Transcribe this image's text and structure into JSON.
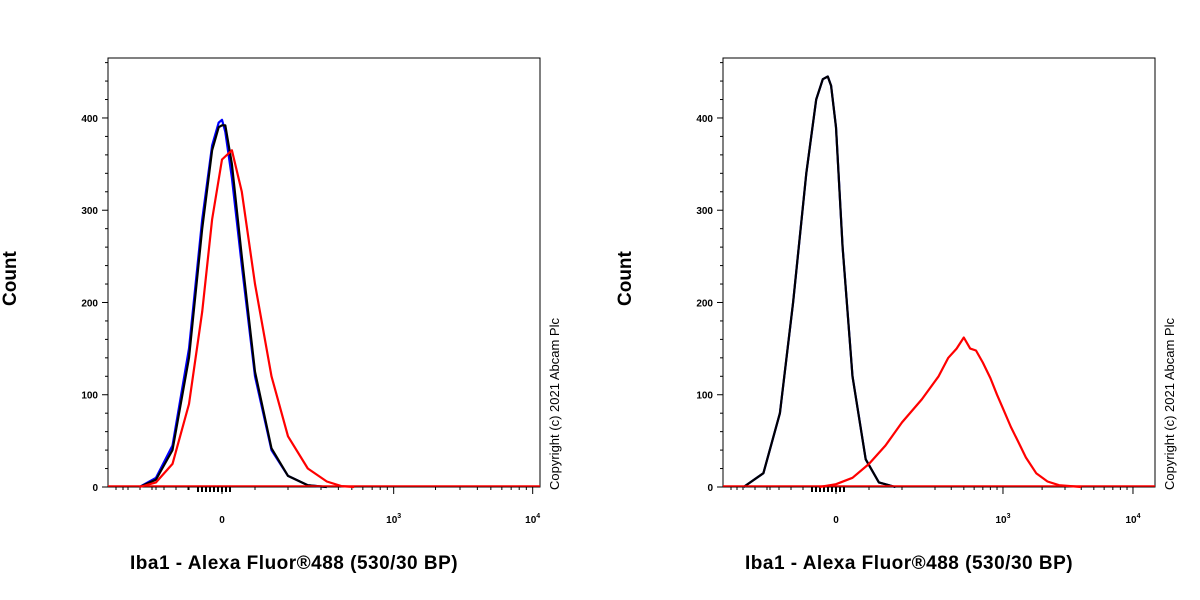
{
  "chart_data": [
    {
      "type": "line",
      "xlabel": "Iba1 - Alexa Fluor®488 (530/30 BP)",
      "ylabel": "Count",
      "copyright": "Copyright (c) 2021 Abcam Plc",
      "x_scale": "biexponential",
      "x_ticks": [
        "0",
        "10^3",
        "10^4"
      ],
      "y_ticks": [
        0,
        100,
        200,
        300,
        400
      ],
      "ylim": [
        0,
        465
      ],
      "series": [
        {
          "color": "#0000ff",
          "x": [
            -250,
            -200,
            -150,
            -100,
            -60,
            -30,
            -10,
            0,
            10,
            30,
            60,
            100,
            150,
            200,
            260,
            330
          ],
          "values": [
            0,
            10,
            45,
            150,
            290,
            370,
            395,
            398,
            385,
            335,
            240,
            120,
            40,
            12,
            2,
            0
          ]
        },
        {
          "color": "#000000",
          "x": [
            -250,
            -200,
            -150,
            -100,
            -60,
            -30,
            -10,
            0,
            10,
            30,
            60,
            100,
            150,
            200,
            260,
            330
          ],
          "values": [
            0,
            8,
            40,
            140,
            280,
            365,
            390,
            392,
            392,
            350,
            250,
            125,
            42,
            12,
            2,
            0
          ]
        },
        {
          "color": "#ff0000",
          "x": [
            -250,
            -200,
            -150,
            -100,
            -60,
            -30,
            0,
            30,
            60,
            100,
            150,
            200,
            260,
            330,
            420,
            520
          ],
          "values": [
            0,
            5,
            25,
            90,
            190,
            290,
            355,
            365,
            320,
            220,
            120,
            55,
            20,
            6,
            1,
            0
          ]
        }
      ]
    },
    {
      "type": "line",
      "xlabel": "Iba1 - Alexa Fluor®488 (530/30 BP)",
      "ylabel": "Count",
      "copyright": "Copyright (c) 2021 Abcam Plc",
      "x_scale": "biexponential",
      "x_ticks": [
        "0",
        "10^3",
        "10^4"
      ],
      "y_ticks": [
        0,
        100,
        200,
        300,
        400
      ],
      "ylim": [
        0,
        465
      ],
      "series": [
        {
          "color": "#0000ff",
          "x": [
            -280,
            -220,
            -170,
            -130,
            -90,
            -60,
            -40,
            -25,
            -15,
            0,
            20,
            50,
            90,
            130,
            180
          ],
          "values": [
            0,
            15,
            80,
            200,
            340,
            420,
            442,
            445,
            435,
            390,
            260,
            120,
            30,
            5,
            0
          ]
        },
        {
          "color": "#000000",
          "x": [
            -280,
            -220,
            -170,
            -130,
            -90,
            -60,
            -40,
            -25,
            -15,
            0,
            20,
            50,
            90,
            130,
            180
          ],
          "values": [
            0,
            15,
            80,
            200,
            340,
            420,
            442,
            445,
            435,
            390,
            260,
            120,
            30,
            5,
            0
          ]
        },
        {
          "color": "#ff0000",
          "x": [
            -50,
            0,
            50,
            100,
            150,
            200,
            260,
            320,
            380,
            440,
            500,
            560,
            620,
            700,
            800,
            900,
            1000,
            1150,
            1300,
            1500,
            1800,
            2200,
            2700,
            3300,
            4000
          ],
          "values": [
            0,
            3,
            10,
            25,
            45,
            70,
            95,
            120,
            140,
            150,
            162,
            150,
            148,
            135,
            118,
            100,
            85,
            65,
            50,
            32,
            15,
            6,
            2,
            1,
            0
          ]
        }
      ]
    }
  ]
}
